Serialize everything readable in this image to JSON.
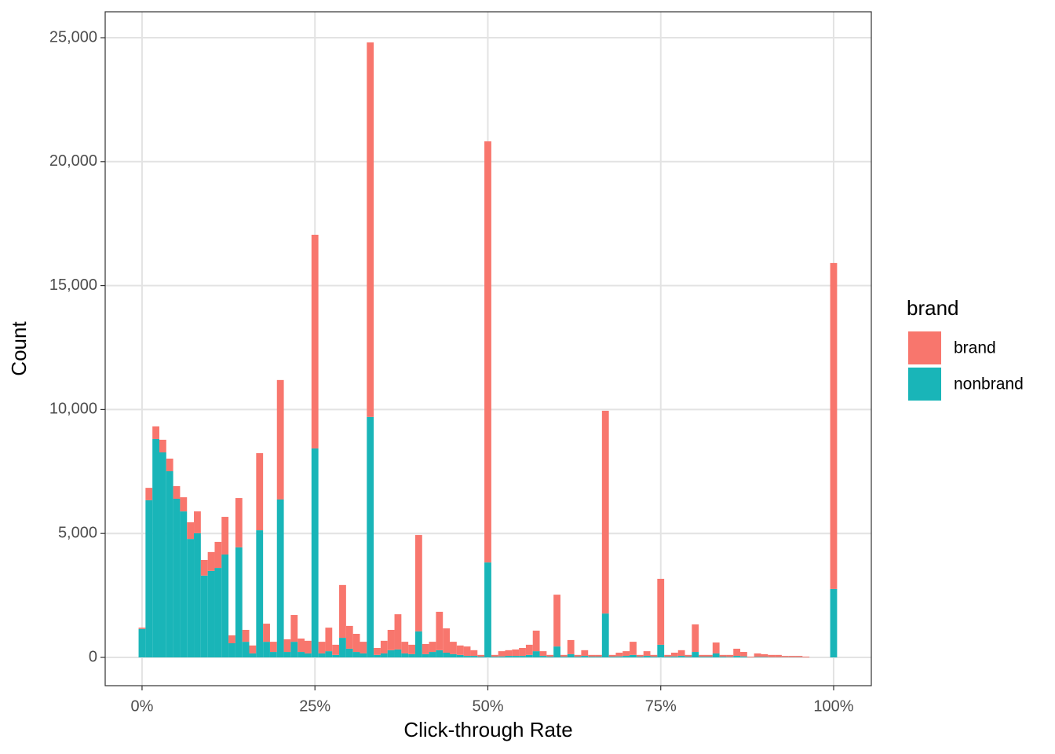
{
  "chart_data": {
    "type": "histogram",
    "x_label": "Click-through Rate",
    "y_label": "Count",
    "legend_title": "brand",
    "legend_position": "right",
    "grid": true,
    "stacked": true,
    "bins": [
      -0.5,
      0.5,
      1.5,
      2.5,
      3.5,
      4.5,
      5.5,
      6.5,
      7.5,
      8.5,
      9.5,
      10.5,
      11.5,
      12.5,
      13.5,
      14.5,
      15.5,
      16.5,
      17.5,
      18.5,
      19.5,
      20.5,
      21.5,
      22.5,
      23.5,
      24.5,
      25.5,
      26.5,
      27.5,
      28.5,
      29.5,
      30.5,
      31.5,
      32.5,
      33.5,
      34.5,
      35.5,
      36.5,
      37.5,
      38.5,
      39.5,
      40.5,
      41.5,
      42.5,
      43.5,
      44.5,
      45.5,
      46.5,
      47.5,
      48.5,
      49.5,
      50.5,
      51.5,
      52.5,
      53.5,
      54.5,
      55.5,
      56.5,
      57.5,
      58.5,
      59.5,
      60.5,
      61.5,
      62.5,
      63.5,
      64.5,
      65.5,
      66.5,
      67.5,
      68.5,
      69.5,
      70.5,
      71.5,
      72.5,
      73.5,
      74.5,
      75.5,
      76.5,
      77.5,
      78.5,
      79.5,
      80.5,
      81.5,
      82.5,
      83.5,
      84.5,
      85.5,
      86.5,
      87.5,
      88.5,
      89.5,
      90.5,
      91.5,
      92.5,
      93.5,
      94.5,
      95.5,
      96.5,
      97.5,
      98.5,
      99.5,
      100.5
    ],
    "series": [
      {
        "name": "brand",
        "color": "#f8766d",
        "values": [
          50,
          500,
          510,
          510,
          510,
          510,
          570,
          670,
          880,
          630,
          760,
          1050,
          1520,
          320,
          1990,
          480,
          320,
          3110,
          730,
          410,
          4820,
          510,
          1080,
          540,
          510,
          8620,
          470,
          950,
          410,
          2130,
          920,
          730,
          470,
          15110,
          280,
          510,
          820,
          1420,
          470,
          380,
          3890,
          410,
          410,
          1550,
          980,
          500,
          380,
          380,
          230,
          70,
          16990,
          70,
          210,
          230,
          260,
          320,
          410,
          830,
          190,
          70,
          2090,
          70,
          570,
          70,
          230,
          70,
          70,
          8180,
          70,
          150,
          190,
          530,
          70,
          190,
          70,
          2660,
          70,
          150,
          230,
          70,
          1110,
          70,
          70,
          440,
          70,
          80,
          290,
          180,
          30,
          140,
          110,
          90,
          90,
          50,
          50,
          50,
          30,
          0,
          0,
          0,
          13150
        ]
      },
      {
        "name": "nonbrand",
        "color": "#19b5b8",
        "values": [
          1150,
          6340,
          8810,
          8270,
          7510,
          6400,
          5890,
          4780,
          5010,
          3300,
          3490,
          3610,
          4150,
          570,
          4440,
          630,
          160,
          5130,
          630,
          220,
          6370,
          220,
          630,
          220,
          160,
          8430,
          160,
          250,
          100,
          790,
          350,
          220,
          160,
          9700,
          100,
          160,
          290,
          320,
          160,
          130,
          1050,
          130,
          220,
          290,
          190,
          130,
          100,
          60,
          60,
          30,
          3830,
          30,
          40,
          60,
          60,
          60,
          100,
          250,
          60,
          30,
          440,
          30,
          130,
          30,
          60,
          30,
          30,
          1770,
          30,
          40,
          60,
          100,
          30,
          60,
          30,
          510,
          30,
          40,
          60,
          30,
          220,
          30,
          30,
          160,
          30,
          20,
          60,
          40,
          0,
          20,
          20,
          10,
          10,
          10,
          10,
          10,
          0,
          0,
          0,
          0,
          2760
        ]
      }
    ],
    "xlim": [
      -5.33,
      105.45
    ],
    "xticks": [
      {
        "value": 0,
        "label": "0%"
      },
      {
        "value": 25,
        "label": "25%"
      },
      {
        "value": 50,
        "label": "50%"
      },
      {
        "value": 75,
        "label": "75%"
      },
      {
        "value": 100,
        "label": "100%"
      }
    ],
    "ylim": [
      -1141,
      26046
    ],
    "yticks": [
      0,
      {
        "value": 5000,
        "label": "5,000"
      },
      {
        "value": 10000,
        "label": "10,000"
      },
      {
        "value": 15000,
        "label": "15,000"
      },
      {
        "value": 20000,
        "label": "20,000"
      },
      {
        "value": 25000,
        "label": "25,000"
      }
    ]
  }
}
